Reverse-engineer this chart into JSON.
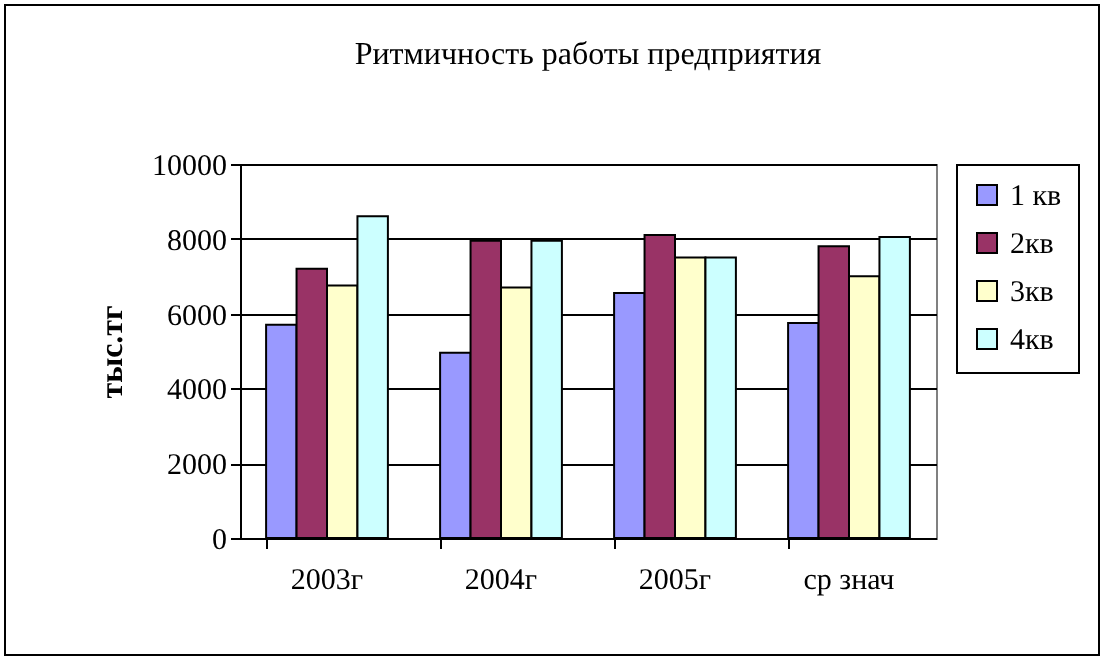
{
  "chart_data": {
    "type": "bar",
    "title": "Ритмичность работы предприятия",
    "ylabel": "тыс.тг",
    "categories": [
      "2003г",
      "2004г",
      "2005г",
      "ср знач"
    ],
    "series": [
      {
        "name": "1 кв",
        "color": "#9999ff",
        "values": [
          5700,
          4950,
          6550,
          5750
        ]
      },
      {
        "name": "2кв",
        "color": "#993366",
        "values": [
          7200,
          7950,
          8100,
          7800
        ]
      },
      {
        "name": "3кв",
        "color": "#ffffcc",
        "values": [
          6750,
          6700,
          7500,
          7000
        ]
      },
      {
        "name": "4кв",
        "color": "#ccffff",
        "values": [
          8600,
          7950,
          7500,
          8050
        ]
      }
    ],
    "ylim": [
      0,
      10000
    ],
    "yticks": [
      0,
      2000,
      4000,
      6000,
      8000,
      10000
    ],
    "grid": "y",
    "legend": "right"
  }
}
